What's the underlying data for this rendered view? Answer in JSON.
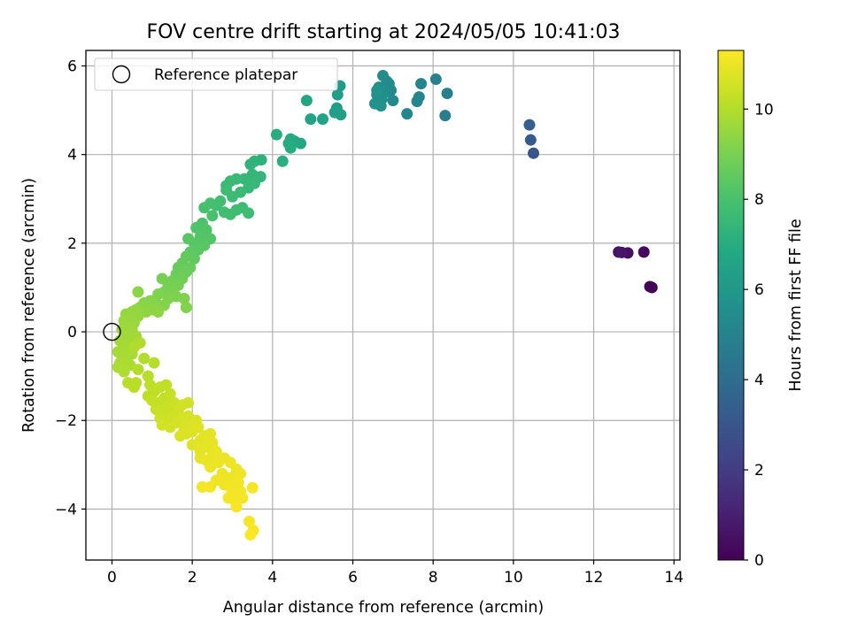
{
  "chart_data": {
    "type": "scatter",
    "title": "FOV centre drift starting at 2024/05/05 10:41:03",
    "xlabel": "Angular distance from reference (arcmin)",
    "ylabel": "Rotation from reference (arcmin)",
    "xlim": [
      -0.65,
      14.15
    ],
    "ylim": [
      -5.15,
      6.35
    ],
    "xticks": [
      0,
      2,
      4,
      6,
      8,
      10,
      12,
      14
    ],
    "yticks": [
      -4,
      -2,
      0,
      2,
      4,
      6
    ],
    "grid": true,
    "legend": {
      "placement": "upper-left",
      "entries": [
        "Reference platepar"
      ]
    },
    "reference_point": {
      "x": 0,
      "y": 0
    },
    "colorbar": {
      "label": "Hours from first FF file",
      "colormap": "viridis",
      "range": [
        0,
        11.3
      ],
      "ticks": [
        0,
        2,
        4,
        6,
        8,
        10
      ]
    },
    "points": [
      {
        "x": 13.45,
        "y": 1.0,
        "c": 0.0
      },
      {
        "x": 13.4,
        "y": 1.02,
        "c": 0.1
      },
      {
        "x": 13.25,
        "y": 1.8,
        "c": 0.3
      },
      {
        "x": 12.85,
        "y": 1.78,
        "c": 0.5
      },
      {
        "x": 12.62,
        "y": 1.8,
        "c": 0.6
      },
      {
        "x": 12.7,
        "y": 1.79,
        "c": 0.7
      },
      {
        "x": 10.5,
        "y": 4.03,
        "c": 3.0
      },
      {
        "x": 10.43,
        "y": 4.33,
        "c": 3.2
      },
      {
        "x": 10.4,
        "y": 4.67,
        "c": 3.4
      },
      {
        "x": 8.3,
        "y": 4.88,
        "c": 4.8
      },
      {
        "x": 8.35,
        "y": 5.38,
        "c": 4.9
      },
      {
        "x": 8.07,
        "y": 5.7,
        "c": 4.95
      },
      {
        "x": 7.7,
        "y": 5.6,
        "c": 5.05
      },
      {
        "x": 7.65,
        "y": 5.3,
        "c": 5.1
      },
      {
        "x": 7.6,
        "y": 5.2,
        "c": 5.15
      },
      {
        "x": 7.35,
        "y": 4.92,
        "c": 5.2
      },
      {
        "x": 7.0,
        "y": 5.22,
        "c": 5.25
      },
      {
        "x": 6.95,
        "y": 5.45,
        "c": 5.3
      },
      {
        "x": 6.9,
        "y": 5.6,
        "c": 5.35
      },
      {
        "x": 6.85,
        "y": 5.65,
        "c": 5.4
      },
      {
        "x": 6.75,
        "y": 5.78,
        "c": 5.45
      },
      {
        "x": 6.8,
        "y": 5.4,
        "c": 5.5
      },
      {
        "x": 6.72,
        "y": 5.25,
        "c": 5.55
      },
      {
        "x": 6.65,
        "y": 5.52,
        "c": 5.6
      },
      {
        "x": 6.6,
        "y": 5.35,
        "c": 5.65
      },
      {
        "x": 6.55,
        "y": 5.15,
        "c": 5.7
      },
      {
        "x": 6.7,
        "y": 5.1,
        "c": 5.75
      },
      {
        "x": 6.6,
        "y": 5.45,
        "c": 5.8
      },
      {
        "x": 5.68,
        "y": 5.55,
        "c": 6.2
      },
      {
        "x": 5.62,
        "y": 5.35,
        "c": 6.25
      },
      {
        "x": 5.6,
        "y": 5.05,
        "c": 6.3
      },
      {
        "x": 5.7,
        "y": 4.9,
        "c": 6.35
      },
      {
        "x": 5.55,
        "y": 4.95,
        "c": 6.4
      },
      {
        "x": 5.25,
        "y": 4.8,
        "c": 6.5
      },
      {
        "x": 4.95,
        "y": 4.8,
        "c": 6.55
      },
      {
        "x": 4.85,
        "y": 5.22,
        "c": 6.6
      },
      {
        "x": 4.7,
        "y": 4.25,
        "c": 6.75
      },
      {
        "x": 4.55,
        "y": 4.3,
        "c": 6.8
      },
      {
        "x": 4.45,
        "y": 4.35,
        "c": 6.85
      },
      {
        "x": 4.4,
        "y": 4.25,
        "c": 6.9
      },
      {
        "x": 4.45,
        "y": 4.15,
        "c": 6.95
      },
      {
        "x": 4.1,
        "y": 4.45,
        "c": 7.0
      },
      {
        "x": 4.25,
        "y": 3.85,
        "c": 7.05
      },
      {
        "x": 3.72,
        "y": 3.88,
        "c": 7.2
      },
      {
        "x": 3.55,
        "y": 3.85,
        "c": 7.25
      },
      {
        "x": 3.45,
        "y": 3.78,
        "c": 7.3
      },
      {
        "x": 3.7,
        "y": 3.5,
        "c": 7.35
      },
      {
        "x": 3.5,
        "y": 3.55,
        "c": 7.4
      },
      {
        "x": 3.3,
        "y": 3.45,
        "c": 7.45
      },
      {
        "x": 3.55,
        "y": 3.35,
        "c": 7.5
      },
      {
        "x": 3.4,
        "y": 3.25,
        "c": 7.52
      },
      {
        "x": 3.1,
        "y": 3.45,
        "c": 7.55
      },
      {
        "x": 2.95,
        "y": 3.4,
        "c": 7.6
      },
      {
        "x": 2.85,
        "y": 3.3,
        "c": 7.62
      },
      {
        "x": 3.2,
        "y": 3.15,
        "c": 7.65
      },
      {
        "x": 3.0,
        "y": 3.05,
        "c": 7.68
      },
      {
        "x": 2.85,
        "y": 3.2,
        "c": 7.7
      },
      {
        "x": 3.25,
        "y": 2.8,
        "c": 7.72
      },
      {
        "x": 3.4,
        "y": 2.68,
        "c": 7.75
      },
      {
        "x": 3.1,
        "y": 2.75,
        "c": 7.78
      },
      {
        "x": 2.95,
        "y": 2.65,
        "c": 7.8
      },
      {
        "x": 2.8,
        "y": 2.7,
        "c": 7.82
      },
      {
        "x": 2.7,
        "y": 2.95,
        "c": 7.84
      },
      {
        "x": 2.6,
        "y": 2.85,
        "c": 7.86
      },
      {
        "x": 2.45,
        "y": 2.9,
        "c": 7.9
      },
      {
        "x": 2.3,
        "y": 2.8,
        "c": 7.95
      },
      {
        "x": 2.5,
        "y": 2.62,
        "c": 8.0
      },
      {
        "x": 2.25,
        "y": 2.45,
        "c": 8.1
      },
      {
        "x": 2.1,
        "y": 2.35,
        "c": 8.15
      },
      {
        "x": 2.35,
        "y": 2.3,
        "c": 8.2
      },
      {
        "x": 2.45,
        "y": 2.1,
        "c": 8.22
      },
      {
        "x": 2.2,
        "y": 2.15,
        "c": 8.25
      },
      {
        "x": 2.05,
        "y": 2.0,
        "c": 8.3
      },
      {
        "x": 1.9,
        "y": 2.1,
        "c": 8.35
      },
      {
        "x": 2.3,
        "y": 1.95,
        "c": 8.38
      },
      {
        "x": 2.15,
        "y": 1.85,
        "c": 8.4
      },
      {
        "x": 1.95,
        "y": 1.8,
        "c": 8.45
      },
      {
        "x": 2.05,
        "y": 1.65,
        "c": 8.5
      },
      {
        "x": 1.85,
        "y": 1.7,
        "c": 8.55
      },
      {
        "x": 1.75,
        "y": 1.55,
        "c": 8.6
      },
      {
        "x": 1.95,
        "y": 1.45,
        "c": 8.62
      },
      {
        "x": 1.65,
        "y": 1.45,
        "c": 8.65
      },
      {
        "x": 1.85,
        "y": 1.35,
        "c": 8.7
      },
      {
        "x": 1.6,
        "y": 1.3,
        "c": 8.75
      },
      {
        "x": 1.75,
        "y": 1.2,
        "c": 8.8
      },
      {
        "x": 1.5,
        "y": 1.15,
        "c": 8.85
      },
      {
        "x": 1.65,
        "y": 1.05,
        "c": 8.9
      },
      {
        "x": 1.4,
        "y": 1.05,
        "c": 8.92
      },
      {
        "x": 1.25,
        "y": 1.2,
        "c": 8.95
      },
      {
        "x": 1.5,
        "y": 0.95,
        "c": 9.0
      },
      {
        "x": 1.3,
        "y": 0.9,
        "c": 9.05
      },
      {
        "x": 1.6,
        "y": 0.8,
        "c": 9.08
      },
      {
        "x": 1.4,
        "y": 0.75,
        "c": 9.1
      },
      {
        "x": 1.15,
        "y": 0.85,
        "c": 9.12
      },
      {
        "x": 1.8,
        "y": 0.75,
        "c": 9.15
      },
      {
        "x": 1.85,
        "y": 0.55,
        "c": 9.18
      },
      {
        "x": 1.3,
        "y": 0.6,
        "c": 9.2
      },
      {
        "x": 1.1,
        "y": 0.65,
        "c": 9.22
      },
      {
        "x": 0.95,
        "y": 0.7,
        "c": 9.25
      },
      {
        "x": 0.8,
        "y": 0.65,
        "c": 9.28
      },
      {
        "x": 0.65,
        "y": 0.9,
        "c": 9.3
      },
      {
        "x": 0.7,
        "y": 0.55,
        "c": 9.32
      },
      {
        "x": 1.0,
        "y": 0.5,
        "c": 9.35
      },
      {
        "x": 1.15,
        "y": 0.45,
        "c": 9.38
      },
      {
        "x": 0.85,
        "y": 0.45,
        "c": 9.4
      },
      {
        "x": 0.6,
        "y": 0.5,
        "c": 9.42
      },
      {
        "x": 0.5,
        "y": 0.45,
        "c": 9.45
      },
      {
        "x": 0.65,
        "y": 0.35,
        "c": 9.48
      },
      {
        "x": 0.35,
        "y": 0.4,
        "c": 9.5
      },
      {
        "x": 0.45,
        "y": 0.3,
        "c": 9.52
      },
      {
        "x": 0.55,
        "y": 0.2,
        "c": 9.55
      },
      {
        "x": 0.3,
        "y": 0.25,
        "c": 9.58
      },
      {
        "x": 0.4,
        "y": 0.1,
        "c": 9.6
      },
      {
        "x": 0.25,
        "y": 0.05,
        "c": 9.62
      },
      {
        "x": 0.5,
        "y": 0.05,
        "c": 9.64
      },
      {
        "x": 0.35,
        "y": -0.05,
        "c": 9.66
      },
      {
        "x": 0.2,
        "y": -0.2,
        "c": 9.68
      },
      {
        "x": 0.45,
        "y": -0.15,
        "c": 9.7
      },
      {
        "x": 0.6,
        "y": -0.1,
        "c": 9.72
      },
      {
        "x": 0.3,
        "y": -0.3,
        "c": 9.74
      },
      {
        "x": 0.15,
        "y": -0.45,
        "c": 9.76
      },
      {
        "x": 0.4,
        "y": -0.4,
        "c": 9.78
      },
      {
        "x": 0.25,
        "y": -0.55,
        "c": 9.8
      },
      {
        "x": 0.5,
        "y": -0.5,
        "c": 9.82
      },
      {
        "x": 0.2,
        "y": -0.7,
        "c": 9.84
      },
      {
        "x": 0.35,
        "y": -0.65,
        "c": 9.86
      },
      {
        "x": 0.15,
        "y": -0.8,
        "c": 9.88
      },
      {
        "x": 0.45,
        "y": -0.75,
        "c": 9.9
      },
      {
        "x": 0.3,
        "y": -0.9,
        "c": 9.92
      },
      {
        "x": 0.55,
        "y": -0.35,
        "c": 9.94
      },
      {
        "x": 0.7,
        "y": -0.25,
        "c": 9.96
      },
      {
        "x": 0.8,
        "y": -0.6,
        "c": 9.98
      },
      {
        "x": 0.65,
        "y": -0.85,
        "c": 10.0
      },
      {
        "x": 1.05,
        "y": -0.7,
        "c": 10.02
      },
      {
        "x": 0.9,
        "y": -1.0,
        "c": 10.05
      },
      {
        "x": 0.6,
        "y": -1.15,
        "c": 10.08
      },
      {
        "x": 0.4,
        "y": -1.15,
        "c": 10.1
      },
      {
        "x": 0.55,
        "y": -1.25,
        "c": 10.12
      },
      {
        "x": 0.95,
        "y": -1.2,
        "c": 10.15
      },
      {
        "x": 1.05,
        "y": -1.35,
        "c": 10.18
      },
      {
        "x": 0.9,
        "y": -1.45,
        "c": 10.2
      },
      {
        "x": 1.2,
        "y": -1.25,
        "c": 10.22
      },
      {
        "x": 1.35,
        "y": -1.2,
        "c": 10.24
      },
      {
        "x": 1.0,
        "y": -1.55,
        "c": 10.26
      },
      {
        "x": 1.15,
        "y": -1.6,
        "c": 10.28
      },
      {
        "x": 1.3,
        "y": -1.5,
        "c": 10.3
      },
      {
        "x": 1.45,
        "y": -1.4,
        "c": 10.32
      },
      {
        "x": 1.1,
        "y": -1.75,
        "c": 10.34
      },
      {
        "x": 1.25,
        "y": -1.8,
        "c": 10.36
      },
      {
        "x": 1.4,
        "y": -1.7,
        "c": 10.38
      },
      {
        "x": 1.55,
        "y": -1.6,
        "c": 10.4
      },
      {
        "x": 1.2,
        "y": -1.95,
        "c": 10.42
      },
      {
        "x": 1.35,
        "y": -2.0,
        "c": 10.44
      },
      {
        "x": 1.5,
        "y": -1.9,
        "c": 10.46
      },
      {
        "x": 1.65,
        "y": -1.8,
        "c": 10.48
      },
      {
        "x": 1.75,
        "y": -1.65,
        "c": 10.5
      },
      {
        "x": 1.9,
        "y": -1.6,
        "c": 10.52
      },
      {
        "x": 1.25,
        "y": -2.1,
        "c": 10.54
      },
      {
        "x": 1.45,
        "y": -2.15,
        "c": 10.56
      },
      {
        "x": 1.6,
        "y": -2.05,
        "c": 10.58
      },
      {
        "x": 1.75,
        "y": -1.95,
        "c": 10.6
      },
      {
        "x": 1.9,
        "y": -1.9,
        "c": 10.62
      },
      {
        "x": 1.8,
        "y": -2.2,
        "c": 10.64
      },
      {
        "x": 1.95,
        "y": -2.1,
        "c": 10.66
      },
      {
        "x": 2.1,
        "y": -2.0,
        "c": 10.68
      },
      {
        "x": 1.7,
        "y": -2.35,
        "c": 10.7
      },
      {
        "x": 1.85,
        "y": -2.3,
        "c": 10.72
      },
      {
        "x": 2.0,
        "y": -2.25,
        "c": 10.74
      },
      {
        "x": 2.15,
        "y": -2.15,
        "c": 10.76
      },
      {
        "x": 2.0,
        "y": -2.55,
        "c": 10.78
      },
      {
        "x": 2.2,
        "y": -2.45,
        "c": 10.8
      },
      {
        "x": 2.3,
        "y": -2.35,
        "c": 10.82
      },
      {
        "x": 2.45,
        "y": -2.3,
        "c": 10.84
      },
      {
        "x": 2.2,
        "y": -2.7,
        "c": 10.86
      },
      {
        "x": 2.35,
        "y": -2.6,
        "c": 10.88
      },
      {
        "x": 2.5,
        "y": -2.5,
        "c": 10.9
      },
      {
        "x": 2.2,
        "y": -2.85,
        "c": 10.92
      },
      {
        "x": 2.35,
        "y": -2.9,
        "c": 10.94
      },
      {
        "x": 2.5,
        "y": -2.8,
        "c": 10.95
      },
      {
        "x": 2.6,
        "y": -2.7,
        "c": 10.96
      },
      {
        "x": 2.45,
        "y": -3.05,
        "c": 10.97
      },
      {
        "x": 2.65,
        "y": -2.95,
        "c": 10.98
      },
      {
        "x": 2.8,
        "y": -2.85,
        "c": 10.99
      },
      {
        "x": 2.95,
        "y": -2.95,
        "c": 11.0
      },
      {
        "x": 3.1,
        "y": -3.1,
        "c": 11.01
      },
      {
        "x": 2.75,
        "y": -3.2,
        "c": 11.02
      },
      {
        "x": 2.9,
        "y": -3.3,
        "c": 11.03
      },
      {
        "x": 3.05,
        "y": -3.25,
        "c": 11.04
      },
      {
        "x": 3.2,
        "y": -3.2,
        "c": 11.05
      },
      {
        "x": 2.6,
        "y": -3.35,
        "c": 11.06
      },
      {
        "x": 2.8,
        "y": -3.45,
        "c": 11.07
      },
      {
        "x": 2.95,
        "y": -3.5,
        "c": 11.08
      },
      {
        "x": 3.15,
        "y": -3.4,
        "c": 11.09
      },
      {
        "x": 2.45,
        "y": -3.5,
        "c": 11.1
      },
      {
        "x": 2.25,
        "y": -3.5,
        "c": 11.11
      },
      {
        "x": 3.0,
        "y": -3.65,
        "c": 11.12
      },
      {
        "x": 3.2,
        "y": -3.6,
        "c": 11.13
      },
      {
        "x": 2.9,
        "y": -3.75,
        "c": 11.14
      },
      {
        "x": 3.05,
        "y": -3.8,
        "c": 11.15
      },
      {
        "x": 3.25,
        "y": -3.75,
        "c": 11.16
      },
      {
        "x": 3.1,
        "y": -3.95,
        "c": 11.17
      },
      {
        "x": 3.5,
        "y": -3.52,
        "c": 11.18
      },
      {
        "x": 3.42,
        "y": -4.28,
        "c": 11.2
      },
      {
        "x": 3.52,
        "y": -4.48,
        "c": 11.22
      },
      {
        "x": 3.45,
        "y": -4.58,
        "c": 11.25
      }
    ]
  }
}
